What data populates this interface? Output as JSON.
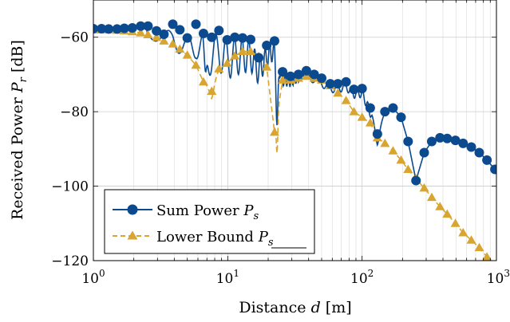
{
  "chart_data": {
    "type": "line",
    "xscale": "log",
    "xlim": [
      1,
      1000
    ],
    "ylim": [
      -120,
      -50
    ],
    "grid": true,
    "legend_position": "bottom-left",
    "xlabel": {
      "text": "Distance",
      "sym": "d",
      "unit": "[m]"
    },
    "ylabel": {
      "text": "Received Power",
      "sym": "P",
      "sub": "r",
      "unit": "[dB]"
    },
    "xticks": [
      {
        "value": 1,
        "base": "10",
        "exp": "0"
      },
      {
        "value": 10,
        "base": "10",
        "exp": "1"
      },
      {
        "value": 100,
        "base": "10",
        "exp": "2"
      },
      {
        "value": 1000,
        "base": "10",
        "exp": "3"
      }
    ],
    "yticks": [
      {
        "value": -60,
        "label": "−60"
      },
      {
        "value": -80,
        "label": "−80"
      },
      {
        "value": -100,
        "label": "−100"
      },
      {
        "value": -120,
        "label": "−120"
      }
    ],
    "series": [
      {
        "name": "Sum Power",
        "sym": "P",
        "sub": "s",
        "underline": false,
        "color": "#0b4a8f",
        "marker": "circle",
        "dash": "solid",
        "markers": [
          [
            1.0,
            -57.7
          ],
          [
            1.15,
            -57.7
          ],
          [
            1.3,
            -57.8
          ],
          [
            1.5,
            -57.8
          ],
          [
            1.7,
            -57.6
          ],
          [
            1.95,
            -57.5
          ],
          [
            2.25,
            -57.0
          ],
          [
            2.55,
            -57.0
          ],
          [
            2.95,
            -58.3
          ],
          [
            3.35,
            -59.2
          ],
          [
            3.9,
            -56.5
          ],
          [
            4.4,
            -58.0
          ],
          [
            5.0,
            -60.2
          ],
          [
            5.8,
            -56.5
          ],
          [
            6.6,
            -59.0
          ],
          [
            7.6,
            -60.0
          ],
          [
            8.6,
            -58.2
          ],
          [
            9.9,
            -60.7
          ],
          [
            11.3,
            -60.0
          ],
          [
            12.9,
            -60.2
          ],
          [
            14.8,
            -60.6
          ],
          [
            17.0,
            -65.5
          ],
          [
            19.5,
            -62.2
          ],
          [
            22.3,
            -61.0
          ],
          [
            25.6,
            -69.3
          ],
          [
            29.3,
            -70.5
          ],
          [
            33.6,
            -70.0
          ],
          [
            38.5,
            -69.0
          ],
          [
            44.0,
            -70.0
          ],
          [
            50.0,
            -71.0
          ],
          [
            58.0,
            -72.5
          ],
          [
            66.0,
            -72.5
          ],
          [
            76.0,
            -72.0
          ],
          [
            87.0,
            -74.0
          ],
          [
            100.0,
            -73.8
          ],
          [
            115.0,
            -79.0
          ],
          [
            130.0,
            -86.0
          ],
          [
            148.0,
            -80.0
          ],
          [
            170.0,
            -79.0
          ],
          [
            195.0,
            -81.5
          ],
          [
            220.0,
            -88.0
          ],
          [
            252.0,
            -98.5
          ],
          [
            290.0,
            -91.0
          ],
          [
            330.0,
            -88.0
          ],
          [
            380.0,
            -87.0
          ],
          [
            430.0,
            -87.2
          ],
          [
            495.0,
            -87.7
          ],
          [
            565.0,
            -88.5
          ],
          [
            650.0,
            -89.5
          ],
          [
            745.0,
            -91.0
          ],
          [
            850.0,
            -93.0
          ],
          [
            975.0,
            -95.5
          ]
        ]
      },
      {
        "name": "Lower Bound",
        "sym": "P",
        "sub": "s",
        "underline": true,
        "color": "#d9a531",
        "marker": "triangle",
        "dash": "dashed",
        "markers": [
          [
            1.0,
            -58.0
          ],
          [
            1.15,
            -58.0
          ],
          [
            1.3,
            -58.0
          ],
          [
            1.5,
            -58.1
          ],
          [
            1.7,
            -58.3
          ],
          [
            1.95,
            -58.5
          ],
          [
            2.25,
            -58.8
          ],
          [
            2.55,
            -59.3
          ],
          [
            2.95,
            -60.0
          ],
          [
            3.35,
            -61.0
          ],
          [
            3.9,
            -61.8
          ],
          [
            4.4,
            -63.2
          ],
          [
            5.0,
            -64.8
          ],
          [
            5.8,
            -67.5
          ],
          [
            6.6,
            -72.0
          ],
          [
            7.6,
            -74.5
          ],
          [
            8.6,
            -68.5
          ],
          [
            9.9,
            -67.0
          ],
          [
            11.3,
            -65.0
          ],
          [
            12.9,
            -63.8
          ],
          [
            14.8,
            -63.8
          ],
          [
            17.0,
            -65.2
          ],
          [
            19.5,
            -68.0
          ],
          [
            22.3,
            -85.5
          ],
          [
            25.6,
            -71.5
          ],
          [
            29.3,
            -71.5
          ],
          [
            33.6,
            -71.0
          ],
          [
            38.5,
            -70.5
          ],
          [
            44.0,
            -71.0
          ],
          [
            50.0,
            -71.5
          ],
          [
            58.0,
            -73.0
          ],
          [
            66.0,
            -75.0
          ],
          [
            76.0,
            -77.0
          ],
          [
            87.0,
            -80.0
          ],
          [
            100.0,
            -81.5
          ],
          [
            115.0,
            -83.0
          ],
          [
            130.0,
            -87.0
          ],
          [
            148.0,
            -88.5
          ],
          [
            170.0,
            -90.5
          ],
          [
            195.0,
            -93.0
          ],
          [
            220.0,
            -95.5
          ],
          [
            252.0,
            -98.0
          ],
          [
            290.0,
            -100.5
          ],
          [
            330.0,
            -103.0
          ],
          [
            380.0,
            -105.5
          ],
          [
            430.0,
            -107.5
          ],
          [
            495.0,
            -110.0
          ],
          [
            565.0,
            -112.5
          ],
          [
            650.0,
            -114.5
          ],
          [
            745.0,
            -116.5
          ],
          [
            850.0,
            -119.0
          ],
          [
            975.0,
            -121.5
          ]
        ]
      }
    ]
  }
}
